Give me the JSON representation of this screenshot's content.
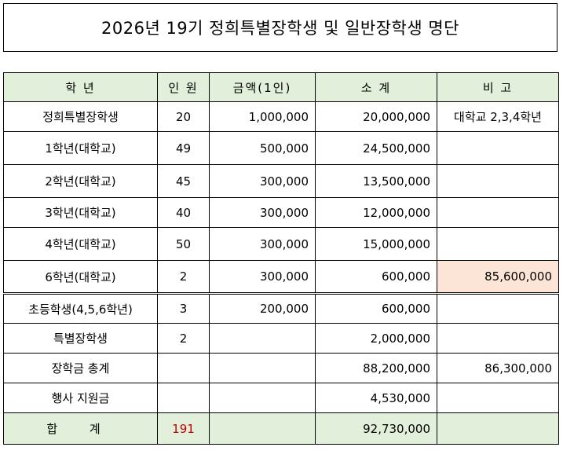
{
  "title": "2026년 19기  정희특별장학생 및 일반장학생 명단",
  "columns": [
    "학 년",
    "인 원",
    "금액(1인)",
    "소 계",
    "비 고"
  ],
  "rows": [
    {
      "grade": "정희특별장학생",
      "count": "20",
      "amount": "1,000,000",
      "subtotal": "20,000,000",
      "note": "대학교 2,3,4학년"
    },
    {
      "grade": "1학년(대학교)",
      "count": "49",
      "amount": "500,000",
      "subtotal": "24,500,000",
      "note": ""
    },
    {
      "grade": "2학년(대학교)",
      "count": "45",
      "amount": "300,000",
      "subtotal": "13,500,000",
      "note": ""
    },
    {
      "grade": "3학년(대학교)",
      "count": "40",
      "amount": "300,000",
      "subtotal": "12,000,000",
      "note": ""
    },
    {
      "grade": "4학년(대학교)",
      "count": "50",
      "amount": "300,000",
      "subtotal": "15,000,000",
      "note": ""
    },
    {
      "grade": "6학년(대학교)",
      "count": "2",
      "amount": "300,000",
      "subtotal": "600,000",
      "note": "85,600,000"
    },
    {
      "grade": "초등학생(4,5,6학년)",
      "count": "3",
      "amount": "200,000",
      "subtotal": "600,000",
      "note": ""
    },
    {
      "grade": "특별장학생",
      "count": "2",
      "amount": "",
      "subtotal": "2,000,000",
      "note": ""
    },
    {
      "grade": "장학금 총계",
      "count": "",
      "amount": "",
      "subtotal": "88,200,000",
      "note": "86,300,000"
    },
    {
      "grade": "행사 지원금",
      "count": "",
      "amount": "",
      "subtotal": "4,530,000",
      "note": ""
    }
  ],
  "total": {
    "label": "합 계",
    "count": "191",
    "amount": "",
    "subtotal": "92,730,000",
    "note": ""
  },
  "colors": {
    "header_bg": "#e2efda",
    "highlight_bg": "#fce4d6",
    "total_count": "#c00000"
  }
}
